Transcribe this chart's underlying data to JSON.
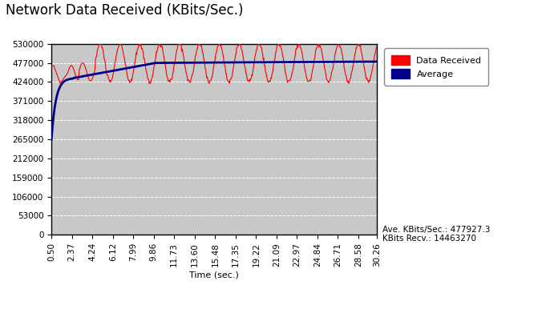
{
  "title": "Network Data Received (KBits/Sec.)",
  "xlabel": "Time (sec.)",
  "ylim": [
    0,
    530000
  ],
  "yticks": [
    0,
    53000,
    106000,
    159000,
    212000,
    265000,
    318000,
    371000,
    424000,
    477000,
    530000
  ],
  "xtick_labels": [
    "0.50",
    "2.37",
    "4.24",
    "6.12",
    "7.99",
    "9.86",
    "11.73",
    "13.60",
    "15.48",
    "17.35",
    "19.22",
    "21.09",
    "22.97",
    "24.84",
    "26.71",
    "28.58",
    "30.26"
  ],
  "figure_bg": "#c0c0c0",
  "plot_bg": "#c8c8c8",
  "outer_bg": "#ffffff",
  "line_data_color": "#ff0000",
  "line_avg_color": "#00008b",
  "legend_data_label": "Data Received",
  "legend_avg_label": "Average",
  "annotation_line1": "Ave. KBits/Sec.: 477927.3",
  "annotation_line2": "KBits Recv.: 14463270",
  "grid_color": "#ffffff",
  "title_fontsize": 12,
  "axis_fontsize": 8,
  "tick_fontsize": 7.5
}
